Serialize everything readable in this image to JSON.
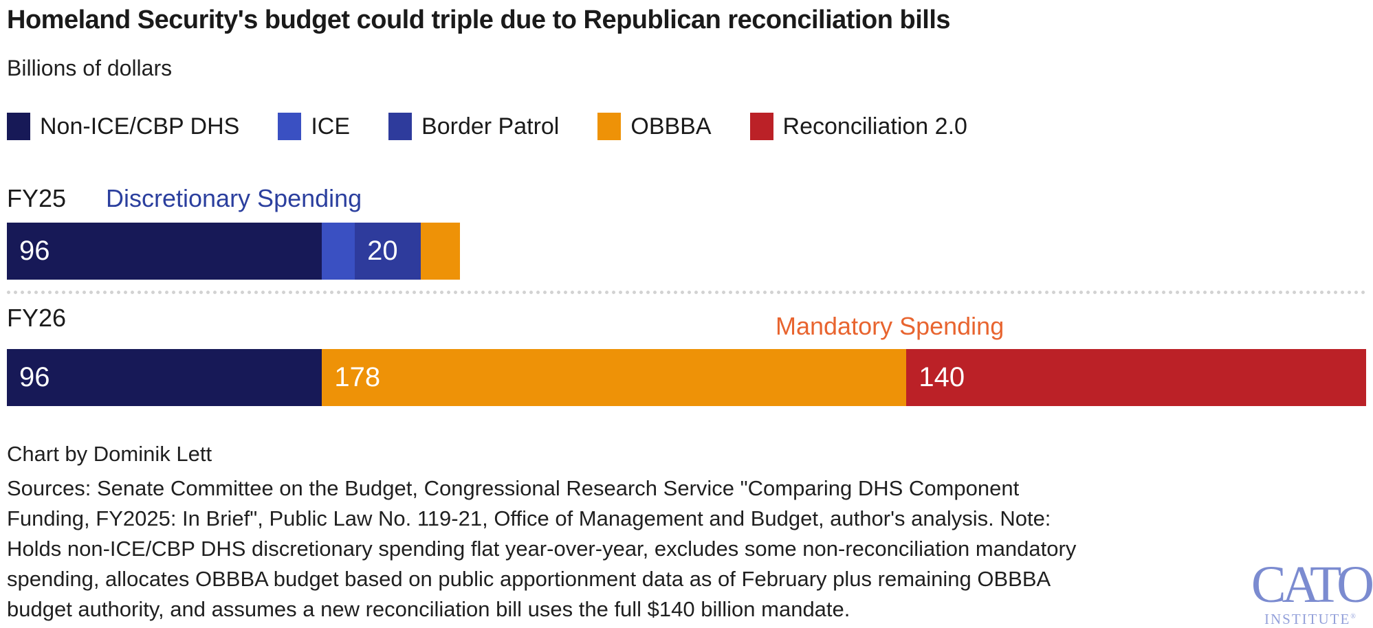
{
  "title": "Homeland Security's budget could triple due to Republican reconciliation bills",
  "subtitle": "Billions of dollars",
  "colors": {
    "non_ice_cbp_dhs": "#171957",
    "ice": "#3a50c2",
    "border_patrol": "#2e3b9c",
    "obbba": "#ee9207",
    "reconciliation_2_0": "#bb2127",
    "discretionary_annotation": "#2b3f9e",
    "mandatory_annotation": "#e8642f",
    "bar_value_text": "#ffffff",
    "logo_blue": "#7b8bd0"
  },
  "legend": [
    {
      "label": "Non-ICE/CBP DHS",
      "color": "#171957"
    },
    {
      "label": "ICE",
      "color": "#3a50c2"
    },
    {
      "label": "Border Patrol",
      "color": "#2e3b9c"
    },
    {
      "label": "OBBBA",
      "color": "#ee9207"
    },
    {
      "label": "Reconciliation 2.0",
      "color": "#bb2127"
    }
  ],
  "chart_data": {
    "type": "bar",
    "orientation": "horizontal-stacked",
    "unit": "billions of dollars",
    "xlim": [
      0,
      414
    ],
    "categories": [
      "FY25",
      "FY26"
    ],
    "series": [
      {
        "name": "Non-ICE/CBP DHS",
        "color": "#171957",
        "values": [
          96,
          96
        ]
      },
      {
        "name": "ICE",
        "color": "#3a50c2",
        "values": [
          10,
          0
        ]
      },
      {
        "name": "Border Patrol",
        "color": "#2e3b9c",
        "values": [
          20,
          0
        ]
      },
      {
        "name": "OBBBA",
        "color": "#ee9207",
        "values": [
          12,
          178
        ]
      },
      {
        "name": "Reconciliation 2.0",
        "color": "#bb2127",
        "values": [
          0,
          140
        ]
      }
    ],
    "annotations": [
      {
        "row": "FY25",
        "text": "Discretionary Spending",
        "color": "#2b3f9e"
      },
      {
        "row": "FY26",
        "text": "Mandatory Spending",
        "color": "#e8642f"
      }
    ]
  },
  "rows": [
    {
      "label": "FY25",
      "annotation": "Discretionary Spending",
      "segments": [
        {
          "name": "Non-ICE/CBP DHS",
          "value": 96,
          "show_label": "96",
          "color": "#171957"
        },
        {
          "name": "ICE",
          "value": 10,
          "show_label": "",
          "color": "#3a50c2"
        },
        {
          "name": "Border Patrol",
          "value": 20,
          "show_label": "20",
          "color": "#2e3b9c"
        },
        {
          "name": "OBBBA",
          "value": 12,
          "show_label": "",
          "color": "#ee9207"
        }
      ]
    },
    {
      "label": "FY26",
      "annotation": "Mandatory Spending",
      "segments": [
        {
          "name": "Non-ICE/CBP DHS",
          "value": 96,
          "show_label": "96",
          "color": "#171957"
        },
        {
          "name": "OBBBA",
          "value": 178,
          "show_label": "178",
          "color": "#ee9207"
        },
        {
          "name": "Reconciliation 2.0",
          "value": 140,
          "show_label": "140",
          "color": "#bb2127"
        }
      ]
    }
  ],
  "footer": {
    "credit": "Chart by Dominik Lett",
    "source_lines": [
      "Sources: Senate Committee on the Budget, Congressional Research Service \"Comparing DHS Component",
      "Funding, FY2025: In Brief\", Public Law No. 119-21, Office of Management and Budget, author's analysis. Note:",
      "Holds non-ICE/CBP DHS discretionary spending flat year-over-year, excludes some non-reconciliation mandatory",
      "spending, allocates OBBBA budget based on public apportionment data as of February plus remaining OBBBA",
      "budget authority, and assumes a new reconciliation bill uses the full $140 billion mandate."
    ]
  },
  "logo": {
    "line1": "CATO",
    "line2": "INSTITUTE",
    "registered": "®"
  }
}
